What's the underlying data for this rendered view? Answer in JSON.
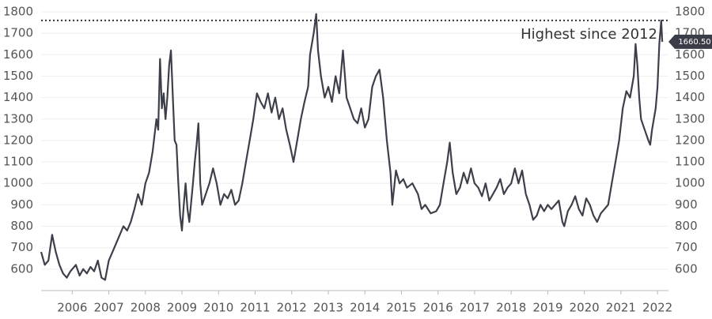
{
  "chart_data": {
    "type": "line",
    "x": [
      2005.15,
      2005.25,
      2005.35,
      2005.45,
      2005.55,
      2005.65,
      2005.75,
      2005.85,
      2005.95,
      2006.1,
      2006.2,
      2006.3,
      2006.4,
      2006.5,
      2006.6,
      2006.7,
      2006.8,
      2006.9,
      2007.0,
      2007.1,
      2007.2,
      2007.3,
      2007.4,
      2007.5,
      2007.6,
      2007.7,
      2007.8,
      2007.9,
      2008.0,
      2008.1,
      2008.2,
      2008.3,
      2008.35,
      2008.4,
      2008.45,
      2008.5,
      2008.55,
      2008.6,
      2008.65,
      2008.7,
      2008.75,
      2008.8,
      2008.85,
      2008.9,
      2008.95,
      2009.0,
      2009.05,
      2009.1,
      2009.15,
      2009.2,
      2009.3,
      2009.35,
      2009.4,
      2009.45,
      2009.5,
      2009.55,
      2009.65,
      2009.75,
      2009.85,
      2009.95,
      2010.05,
      2010.15,
      2010.25,
      2010.35,
      2010.45,
      2010.55,
      2010.65,
      2010.75,
      2010.85,
      2010.95,
      2011.05,
      2011.15,
      2011.25,
      2011.35,
      2011.45,
      2011.55,
      2011.65,
      2011.75,
      2011.85,
      2011.95,
      2012.05,
      2012.15,
      2012.25,
      2012.35,
      2012.45,
      2012.5,
      2012.6,
      2012.67,
      2012.72,
      2012.8,
      2012.9,
      2013.0,
      2013.1,
      2013.2,
      2013.3,
      2013.4,
      2013.5,
      2013.6,
      2013.7,
      2013.8,
      2013.9,
      2014.0,
      2014.1,
      2014.2,
      2014.3,
      2014.4,
      2014.5,
      2014.6,
      2014.7,
      2014.75,
      2014.85,
      2014.95,
      2015.05,
      2015.15,
      2015.3,
      2015.45,
      2015.55,
      2015.65,
      2015.8,
      2015.95,
      2016.05,
      2016.15,
      2016.25,
      2016.32,
      2016.4,
      2016.5,
      2016.6,
      2016.7,
      2016.8,
      2016.9,
      2017.0,
      2017.1,
      2017.2,
      2017.3,
      2017.4,
      2017.5,
      2017.6,
      2017.7,
      2017.8,
      2017.9,
      2018.0,
      2018.1,
      2018.2,
      2018.3,
      2018.4,
      2018.5,
      2018.6,
      2018.7,
      2018.8,
      2018.9,
      2019.0,
      2019.1,
      2019.2,
      2019.3,
      2019.4,
      2019.45,
      2019.55,
      2019.65,
      2019.75,
      2019.85,
      2019.95,
      2020.05,
      2020.15,
      2020.25,
      2020.35,
      2020.45,
      2020.55,
      2020.65,
      2020.75,
      2020.85,
      2020.95,
      2021.05,
      2021.15,
      2021.25,
      2021.35,
      2021.4,
      2021.45,
      2021.5,
      2021.55,
      2021.65,
      2021.75,
      2021.8,
      2021.85,
      2021.95,
      2022.0,
      2022.05,
      2022.1,
      2022.13
    ],
    "values": [
      680,
      620,
      640,
      760,
      680,
      620,
      580,
      560,
      590,
      620,
      570,
      600,
      580,
      610,
      590,
      640,
      560,
      550,
      640,
      680,
      720,
      760,
      800,
      780,
      820,
      880,
      950,
      900,
      1000,
      1050,
      1150,
      1300,
      1250,
      1580,
      1350,
      1420,
      1300,
      1400,
      1550,
      1620,
      1400,
      1200,
      1180,
      1000,
      850,
      780,
      900,
      1000,
      880,
      820,
      1000,
      1100,
      1180,
      1280,
      1000,
      900,
      950,
      1000,
      1070,
      1000,
      900,
      950,
      930,
      970,
      900,
      920,
      1000,
      1100,
      1200,
      1300,
      1420,
      1380,
      1350,
      1420,
      1330,
      1400,
      1300,
      1350,
      1250,
      1180,
      1100,
      1200,
      1300,
      1380,
      1450,
      1600,
      1700,
      1790,
      1620,
      1500,
      1400,
      1450,
      1380,
      1500,
      1420,
      1620,
      1400,
      1350,
      1300,
      1280,
      1350,
      1260,
      1300,
      1450,
      1500,
      1530,
      1400,
      1200,
      1050,
      900,
      1060,
      1000,
      1020,
      980,
      1000,
      950,
      880,
      900,
      860,
      870,
      900,
      1000,
      1100,
      1190,
      1050,
      950,
      980,
      1050,
      1000,
      1070,
      1000,
      980,
      940,
      1000,
      920,
      950,
      980,
      1020,
      950,
      980,
      1000,
      1070,
      1000,
      1060,
      950,
      900,
      830,
      850,
      900,
      870,
      900,
      880,
      900,
      920,
      820,
      800,
      870,
      900,
      940,
      880,
      850,
      930,
      900,
      850,
      820,
      860,
      880,
      900,
      1000,
      1100,
      1200,
      1350,
      1430,
      1400,
      1500,
      1650,
      1550,
      1400,
      1300,
      1250,
      1200,
      1180,
      1250,
      1350,
      1450,
      1650,
      1760,
      1660.5
    ],
    "value_labels": [
      null,
      null,
      null,
      null,
      null,
      null,
      null,
      null,
      null,
      null,
      null,
      null,
      null,
      null,
      null,
      null,
      null,
      null,
      null,
      null,
      null,
      null,
      null,
      null,
      null,
      null,
      null,
      null,
      null,
      null,
      null,
      null,
      null,
      null,
      null,
      null,
      null,
      null,
      null,
      null,
      null,
      null,
      null,
      null,
      null,
      null,
      null,
      null,
      null,
      null,
      null,
      null,
      null,
      null,
      null,
      null,
      null,
      null,
      null,
      null,
      null,
      null,
      null,
      null,
      null,
      null,
      null,
      null,
      null,
      null,
      null,
      null,
      null,
      null,
      null,
      null,
      null,
      null,
      null,
      null,
      null,
      null,
      null,
      null,
      null,
      null,
      null,
      null,
      null,
      null,
      null,
      null,
      null,
      null,
      null,
      null,
      null,
      null,
      null,
      null,
      null,
      null,
      null,
      null,
      null,
      null,
      null,
      null,
      null,
      null,
      null,
      null,
      null,
      null,
      null,
      null,
      null,
      null,
      null,
      null,
      null,
      null,
      null,
      null,
      null,
      null,
      null,
      null,
      null,
      null,
      null,
      null,
      null,
      null,
      null,
      null,
      null,
      null,
      null,
      null,
      null,
      null,
      null,
      null,
      null,
      null,
      null,
      null,
      null,
      null,
      null,
      null,
      null,
      null,
      null,
      null,
      null,
      null,
      null,
      null,
      null,
      null,
      null,
      null,
      null,
      null,
      null,
      null,
      null,
      null,
      null,
      null,
      null,
      null,
      null,
      null,
      null,
      null,
      null,
      null,
      null,
      null,
      null,
      null,
      null,
      null,
      null,
      "1660.50"
    ],
    "color": "#3d3f4a",
    "xlim": [
      2005.15,
      2022.3
    ],
    "xticks": [
      2006,
      2007,
      2008,
      2009,
      2010,
      2011,
      2012,
      2013,
      2014,
      2015,
      2016,
      2017,
      2018,
      2019,
      2020,
      2021,
      2022
    ],
    "ylim": [
      500,
      1800
    ],
    "yticks": [
      600,
      700,
      800,
      900,
      1000,
      1100,
      1200,
      1300,
      1400,
      1500,
      1600,
      1700,
      1800
    ],
    "grid": true,
    "right_axis": true,
    "reference_line": {
      "value": 1760,
      "label": "Highest since 2012"
    }
  }
}
